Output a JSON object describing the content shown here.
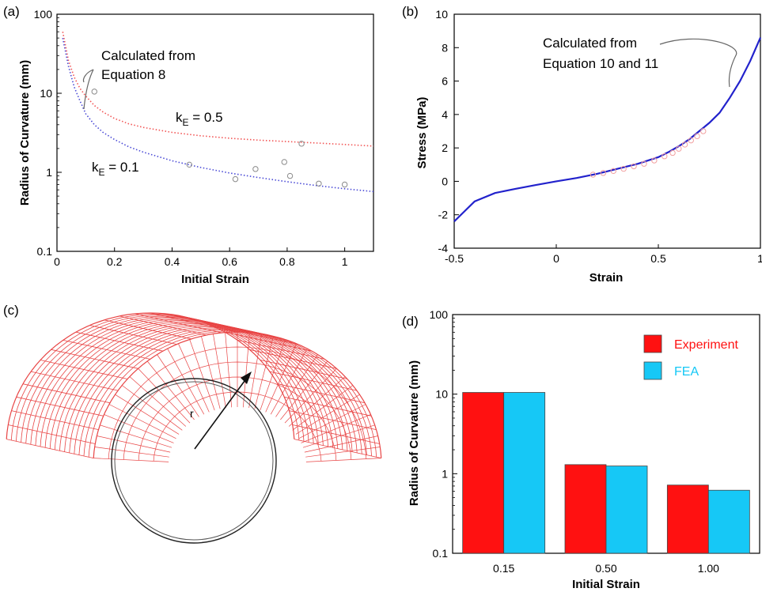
{
  "colors": {
    "experiment_red": "#ff1111",
    "fea_cyan": "#16c8f6",
    "curve_red": "#f25555",
    "curve_blue": "#4a4ad6",
    "stress_blue": "#2222cc",
    "mesh_red": "#e84444",
    "marker_pink": "#f2a0a0",
    "marker_gray": "#8a8a8a"
  },
  "panel_a": {
    "label": "(a)",
    "annotation_line1": "Calculated from",
    "annotation_line2": "Equation 8",
    "kE_high": {
      "k": "k",
      "sub": "E",
      "rest": " = 0.5"
    },
    "kE_low": {
      "k": "k",
      "sub": "E",
      "rest": " = 0.1"
    }
  },
  "panel_b": {
    "label": "(b)",
    "annotation_line1": "Calculated from",
    "annotation_line2": "Equation 10 and 11"
  },
  "panel_c": {
    "label": "(c)",
    "radius_label": "r"
  },
  "panel_d": {
    "label": "(d)"
  },
  "chart_data": [
    {
      "type": "scatter",
      "panel": "a",
      "xlabel": "Initial Strain",
      "ylabel": "Radius of Curvature (mm)",
      "xlim": [
        0,
        1.1
      ],
      "ylim": [
        0.1,
        100
      ],
      "yscale": "log",
      "xticks": [
        0,
        0.2,
        0.4,
        0.6,
        0.8,
        1
      ],
      "xtick_labels": [
        "0",
        "0.2",
        "0.4",
        "0.6",
        "0.8",
        "1"
      ],
      "yticks": [
        0.1,
        1,
        10,
        100
      ],
      "ytick_labels": [
        "0.1",
        "1",
        "10",
        "100"
      ],
      "series": [
        {
          "name": "kE = 0.5",
          "style": "dotted-line",
          "color": "#f25555",
          "x": [
            0.02,
            0.04,
            0.06,
            0.08,
            0.1,
            0.13,
            0.16,
            0.2,
            0.25,
            0.3,
            0.4,
            0.5,
            0.6,
            0.7,
            0.8,
            0.9,
            1.0,
            1.1
          ],
          "y": [
            60,
            26,
            16,
            11.5,
            9.2,
            7.0,
            5.8,
            4.8,
            4.1,
            3.7,
            3.2,
            2.9,
            2.7,
            2.55,
            2.45,
            2.35,
            2.25,
            2.15
          ]
        },
        {
          "name": "kE = 0.1",
          "style": "dotted-line",
          "color": "#4a4ad6",
          "x": [
            0.02,
            0.04,
            0.06,
            0.08,
            0.1,
            0.13,
            0.16,
            0.2,
            0.25,
            0.3,
            0.4,
            0.5,
            0.6,
            0.7,
            0.8,
            0.9,
            1.0,
            1.1
          ],
          "y": [
            50,
            22,
            12,
            8.0,
            5.5,
            4.0,
            3.2,
            2.6,
            2.1,
            1.8,
            1.4,
            1.15,
            0.98,
            0.86,
            0.76,
            0.68,
            0.62,
            0.57
          ]
        },
        {
          "name": "experiment",
          "style": "markers",
          "color": "#8a8a8a",
          "x": [
            0.13,
            0.46,
            0.62,
            0.69,
            0.79,
            0.81,
            0.85,
            0.91,
            1.0
          ],
          "y": [
            10.5,
            1.25,
            0.82,
            1.1,
            1.35,
            0.9,
            2.3,
            0.72,
            0.7
          ]
        }
      ]
    },
    {
      "type": "line",
      "panel": "b",
      "xlabel": "Strain",
      "ylabel": "Stress (MPa)",
      "xlim": [
        -0.5,
        1
      ],
      "ylim": [
        -4,
        10
      ],
      "xticks": [
        -0.5,
        0,
        0.5,
        1
      ],
      "xtick_labels": [
        "-0.5",
        "0",
        "0.5",
        "1"
      ],
      "yticks": [
        -4,
        -2,
        0,
        2,
        4,
        6,
        8,
        10
      ],
      "ytick_labels": [
        "-4",
        "-2",
        "0",
        "2",
        "4",
        "6",
        "8",
        "10"
      ],
      "series": [
        {
          "name": "calculated",
          "style": "line",
          "color": "#2222cc",
          "x": [
            -0.5,
            -0.45,
            -0.4,
            -0.3,
            -0.2,
            -0.1,
            0,
            0.1,
            0.2,
            0.3,
            0.4,
            0.5,
            0.55,
            0.6,
            0.65,
            0.7,
            0.75,
            0.8,
            0.85,
            0.9,
            0.95,
            1.0
          ],
          "y": [
            -2.4,
            -1.8,
            -1.2,
            -0.7,
            -0.45,
            -0.22,
            0.0,
            0.2,
            0.45,
            0.75,
            1.05,
            1.45,
            1.75,
            2.1,
            2.5,
            3.0,
            3.5,
            4.1,
            5.0,
            6.0,
            7.2,
            8.6
          ]
        },
        {
          "name": "experiment",
          "style": "markers",
          "color": "#f2a0a0",
          "x": [
            0.18,
            0.23,
            0.28,
            0.33,
            0.38,
            0.43,
            0.48,
            0.53,
            0.57,
            0.6,
            0.63,
            0.66,
            0.69,
            0.72
          ],
          "y": [
            0.4,
            0.5,
            0.62,
            0.75,
            0.9,
            1.05,
            1.25,
            1.5,
            1.7,
            1.95,
            2.2,
            2.45,
            2.7,
            3.0
          ]
        }
      ]
    },
    {
      "type": "bar",
      "panel": "d",
      "xlabel": "Initial Strain",
      "ylabel": "Radius of Curvature (mm)",
      "yscale": "log",
      "ylim": [
        0.1,
        100
      ],
      "yticks": [
        0.1,
        1,
        10,
        100
      ],
      "ytick_labels": [
        "0.1",
        "1",
        "10",
        "100"
      ],
      "categories": [
        "0.15",
        "0.50",
        "1.00"
      ],
      "series": [
        {
          "name": "Experiment",
          "color": "#ff1111",
          "values": [
            10.5,
            1.3,
            0.72
          ]
        },
        {
          "name": "FEA",
          "color": "#16c8f6",
          "values": [
            10.5,
            1.25,
            0.62
          ]
        }
      ],
      "legend_position": "top-right"
    }
  ]
}
